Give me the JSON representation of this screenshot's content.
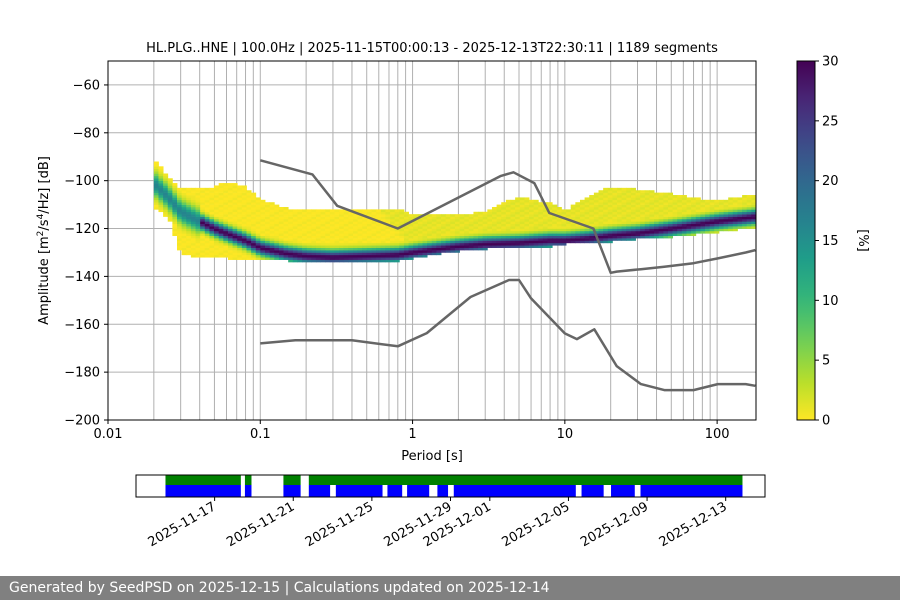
{
  "chart_data": [
    {
      "type": "heatmap",
      "title": "HL.PLG..HNE | 100.0Hz | 2025-11-15T00:00:13 - 2025-12-13T22:30:11 | 1189 segments",
      "xlabel": "Period [s]",
      "ylabel_parts": [
        "Amplitude [m",
        "2",
        "/s",
        "4",
        "/Hz] [dB]"
      ],
      "x_scale": "log",
      "xlim": [
        0.01,
        180
      ],
      "ylim": [
        -200,
        -50
      ],
      "x_ticks": [
        0.01,
        0.1,
        1,
        10,
        100
      ],
      "x_tick_labels": [
        "0.01",
        "0.1",
        "1",
        "10",
        "100"
      ],
      "y_ticks": [
        -200,
        -180,
        -160,
        -140,
        -120,
        -100,
        -80,
        -60
      ],
      "y_tick_labels": [
        "−200",
        "−180",
        "−160",
        "−140",
        "−120",
        "−100",
        "−80",
        "−60"
      ],
      "grid": "vertical lines at period bins",
      "colorbar": {
        "label": "[%]",
        "range": [
          0,
          30
        ],
        "ticks": [
          0,
          5,
          10,
          15,
          20,
          25,
          30
        ],
        "colormap": "viridis (reversed)"
      },
      "mode_curve": {
        "period": [
          0.02,
          0.025,
          0.03,
          0.04,
          0.05,
          0.06,
          0.08,
          0.1,
          0.15,
          0.2,
          0.3,
          0.5,
          0.8,
          1,
          1.5,
          2,
          3,
          5,
          8,
          10,
          15,
          20,
          30,
          50,
          100,
          180
        ],
        "db": [
          -101,
          -107,
          -113,
          -117,
          -120,
          -122,
          -125,
          -128,
          -130.5,
          -131.5,
          -132,
          -131.5,
          -131,
          -130,
          -128.5,
          -127.5,
          -126.5,
          -126,
          -125,
          -125,
          -124,
          -123,
          -122,
          -120,
          -117,
          -115
        ]
      },
      "spread": {
        "period": [
          0.02,
          0.025,
          0.03,
          0.04,
          0.05,
          0.06,
          0.08,
          0.1,
          0.15,
          0.2,
          0.3,
          0.5,
          0.8,
          1,
          1.5,
          2,
          3,
          5,
          8,
          10,
          15,
          20,
          30,
          50,
          100,
          180
        ],
        "upper_db": [
          -91,
          -99,
          -104,
          -103,
          -103,
          -101,
          -103,
          -108,
          -112,
          -112,
          -112,
          -112,
          -112,
          -115,
          -114,
          -115,
          -113,
          -107,
          -110,
          -113,
          -106,
          -103,
          -104,
          -106,
          -109,
          -106
        ],
        "lower_db": [
          -111,
          -115,
          -130,
          -132,
          -132,
          -132,
          -133,
          -133,
          -133,
          -134,
          -134,
          -134,
          -133,
          -132,
          -130,
          -129,
          -128,
          -128,
          -127,
          -126,
          -126,
          -125,
          -124,
          -123,
          -121,
          -119
        ]
      },
      "reference_curves": [
        {
          "period": [
            0.1,
            0.22,
            0.32,
            0.8,
            3.8,
            4.6,
            6.3,
            7.9,
            15.4,
            20,
            21.9,
            31.6,
            45,
            70,
            101,
            154,
            178
          ],
          "db": [
            -91.5,
            -97.4,
            -110.5,
            -120,
            -98,
            -96.5,
            -101,
            -113.5,
            -120,
            -138.5,
            -138,
            -137,
            -136,
            -134.5,
            -132.5,
            -130,
            -129
          ]
        },
        {
          "period": [
            0.1,
            0.17,
            0.4,
            0.8,
            1.24,
            2.4,
            4.3,
            5,
            6,
            10,
            12,
            15.6,
            21.9,
            31.6,
            45,
            70,
            101,
            154,
            178
          ],
          "db": [
            -168,
            -166.7,
            -166.7,
            -169.2,
            -163.7,
            -148.6,
            -141.5,
            -141.5,
            -149.2,
            -163.8,
            -166.2,
            -162.1,
            -177.5,
            -185,
            -187.5,
            -187.5,
            -185,
            -185,
            -185.7
          ]
        }
      ],
      "period_bin_lines": [
        0.02,
        0.03,
        0.04,
        0.05,
        0.06,
        0.07,
        0.08,
        0.09,
        0.1,
        0.2,
        0.3,
        0.4,
        0.5,
        0.6,
        0.7,
        0.8,
        0.9,
        1,
        2,
        3,
        4,
        5,
        6,
        7,
        8,
        9,
        10,
        20,
        30,
        40,
        50,
        60,
        70,
        80,
        90,
        100
      ]
    },
    {
      "type": "bar",
      "description_source": "data availability timeline",
      "date_ticks": [
        "2025-11-17",
        "2025-11-21",
        "2025-11-25",
        "2025-11-29",
        "2025-12-01",
        "2025-12-05",
        "2025-12-09",
        "2025-12-13"
      ],
      "xlim": [
        "2025-11-13",
        "2025-12-15"
      ],
      "green_intervals": [
        [
          "2025-11-14T12:00",
          "2025-11-18T08:00"
        ],
        [
          "2025-11-18T13:00",
          "2025-11-18T21:00"
        ],
        [
          "2025-11-20T12:00",
          "2025-11-21T09:00"
        ],
        [
          "2025-11-21T19:00",
          "2025-12-13T20:30"
        ]
      ],
      "blue_intervals": [
        [
          "2025-11-14T12:00",
          "2025-11-18T08:00"
        ],
        [
          "2025-11-18T13:00",
          "2025-11-18T21:00"
        ],
        [
          "2025-11-20T12:00",
          "2025-11-21T09:00"
        ],
        [
          "2025-11-21T19:00",
          "2025-11-22T21:00"
        ],
        [
          "2025-11-23T04:00",
          "2025-11-25T13:00"
        ],
        [
          "2025-11-25T19:00",
          "2025-11-26T13:00"
        ],
        [
          "2025-11-26T19:00",
          "2025-11-27T22:00"
        ],
        [
          "2025-11-28T08:00",
          "2025-11-28T21:00"
        ],
        [
          "2025-11-29T04:00",
          "2025-12-05T09:00"
        ],
        [
          "2025-12-05T16:00",
          "2025-12-06T19:00"
        ],
        [
          "2025-12-07T04:00",
          "2025-12-08T09:00"
        ],
        [
          "2025-12-08T16:00",
          "2025-12-13T20:30"
        ]
      ],
      "colors": {
        "upper": "#008000",
        "lower": "#0000ff"
      }
    }
  ],
  "footer": {
    "text": "Generated by SeedPSD on 2025-12-15 | Calculations updated on 2025-12-14"
  }
}
